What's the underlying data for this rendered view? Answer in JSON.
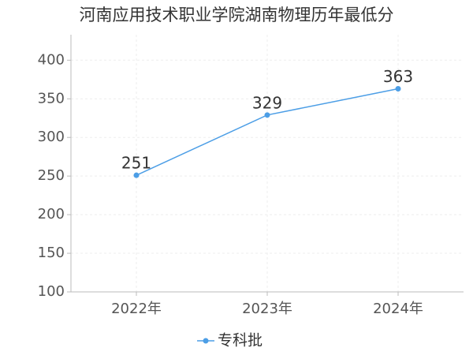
{
  "chart_data": {
    "type": "line",
    "title": "河南应用技术职业学院湖南物理历年最低分",
    "categories": [
      "2022年",
      "2023年",
      "2024年"
    ],
    "series": [
      {
        "name": "专科批",
        "color": "#4c9ee6",
        "values": [
          251,
          329,
          363
        ]
      }
    ],
    "ylim": [
      100,
      433
    ],
    "yticks": [
      100,
      150,
      200,
      250,
      300,
      350,
      400
    ],
    "grid": true,
    "legend": "bottom"
  }
}
